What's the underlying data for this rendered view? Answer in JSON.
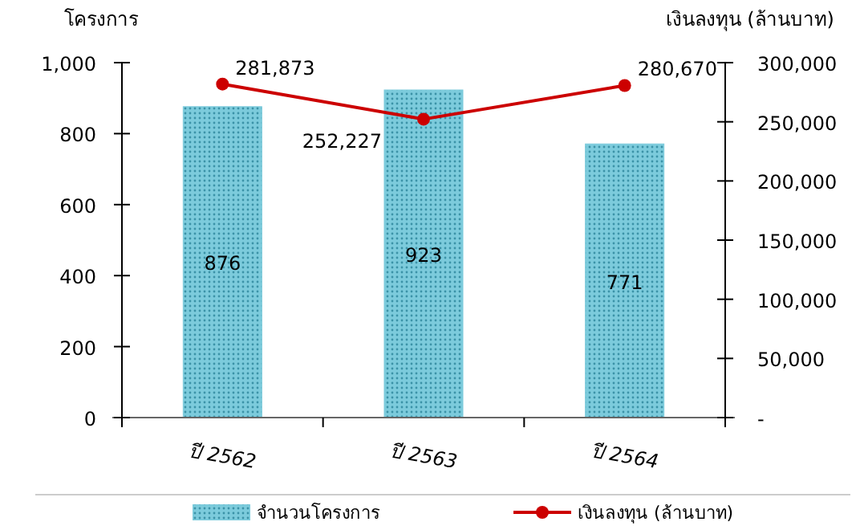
{
  "chart_data": {
    "type": "bar",
    "ylabel": "โครงการ",
    "y2label": "เงินลงทุน (ล้านบาท)",
    "categories": [
      "ปี 2562",
      "ปี 2563",
      "ปี 2564"
    ],
    "series": [
      {
        "name": "จำนวนโครงการ",
        "color": "#7ccbdc",
        "values": [
          876,
          923,
          771
        ]
      },
      {
        "name": "เงินลงทุน (ล้านบาท)",
        "type": "line",
        "axis": "y2",
        "color": "#cc0000",
        "marker": "circle",
        "values": [
          281873,
          252227,
          280670
        ],
        "value_labels": [
          "281,873",
          "252,227",
          "280,670"
        ]
      }
    ],
    "ylim": [
      0,
      1000
    ],
    "yticks": [
      {
        "value": 0,
        "label": "0"
      },
      {
        "value": 200,
        "label": "200"
      },
      {
        "value": 400,
        "label": "400"
      },
      {
        "value": 600,
        "label": "600"
      },
      {
        "value": 800,
        "label": "800"
      },
      {
        "value": 1000,
        "label": "1,000"
      }
    ],
    "y2lim": [
      0,
      300000
    ],
    "y2ticks": [
      {
        "value": 0,
        "label": "-"
      },
      {
        "value": 50000,
        "label": "50,000"
      },
      {
        "value": 100000,
        "label": "100,000"
      },
      {
        "value": 150000,
        "label": "150,000"
      },
      {
        "value": 200000,
        "label": "200,000"
      },
      {
        "value": 250000,
        "label": "250,000"
      },
      {
        "value": 300000,
        "label": "300,000"
      }
    ],
    "data_labels": true,
    "legend": "bottom",
    "grid": false
  }
}
